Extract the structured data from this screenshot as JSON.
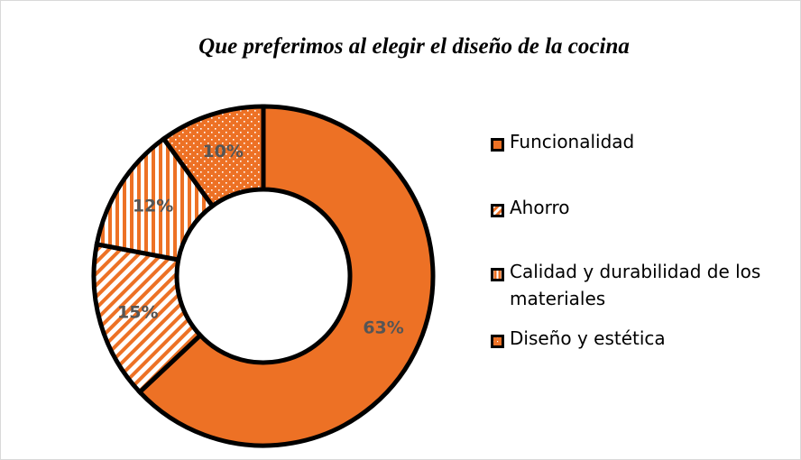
{
  "chart_data": {
    "type": "pie",
    "title": "Que preferimos al elegir el diseño de la cocina",
    "categories": [
      "Funcionalidad",
      "Ahorro",
      "Calidad y durabilidad de los materiales",
      "Diseño y estética"
    ],
    "values": [
      63,
      15,
      12,
      10
    ],
    "value_labels": [
      "63%",
      "15%",
      "12%",
      "10%"
    ],
    "unit": "%",
    "variant": "donut",
    "legend_position": "right",
    "base_color": "#ED7125",
    "patterns": [
      "solid",
      "diagonal-stripes",
      "vertical-stripes",
      "dots"
    ]
  }
}
